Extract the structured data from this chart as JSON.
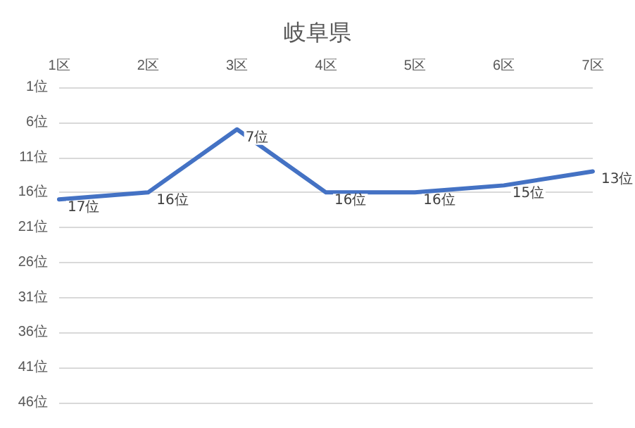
{
  "chart_data": {
    "type": "line",
    "title": "岐阜県",
    "categories": [
      "1区",
      "2区",
      "3区",
      "4区",
      "5区",
      "6区",
      "7区"
    ],
    "series": [
      {
        "color": "#4472c4",
        "values": [
          17,
          16,
          7,
          16,
          16,
          15,
          13
        ],
        "value_labels": [
          "17位",
          "16位",
          "7位",
          "16位",
          "16位",
          "15位",
          "13位"
        ]
      }
    ],
    "ylim": [
      46,
      1
    ],
    "yticks": [
      {
        "value": 1,
        "label": "1位"
      },
      {
        "value": 6,
        "label": "6位"
      },
      {
        "value": 11,
        "label": "11位"
      },
      {
        "value": 16,
        "label": "16位"
      },
      {
        "value": 21,
        "label": "21位"
      },
      {
        "value": 26,
        "label": "26位"
      },
      {
        "value": 31,
        "label": "31位"
      },
      {
        "value": 36,
        "label": "36位"
      },
      {
        "value": 41,
        "label": "41位"
      },
      {
        "value": 46,
        "label": "46位"
      }
    ],
    "grid": "y",
    "marker": "none",
    "line_style": "solid"
  }
}
